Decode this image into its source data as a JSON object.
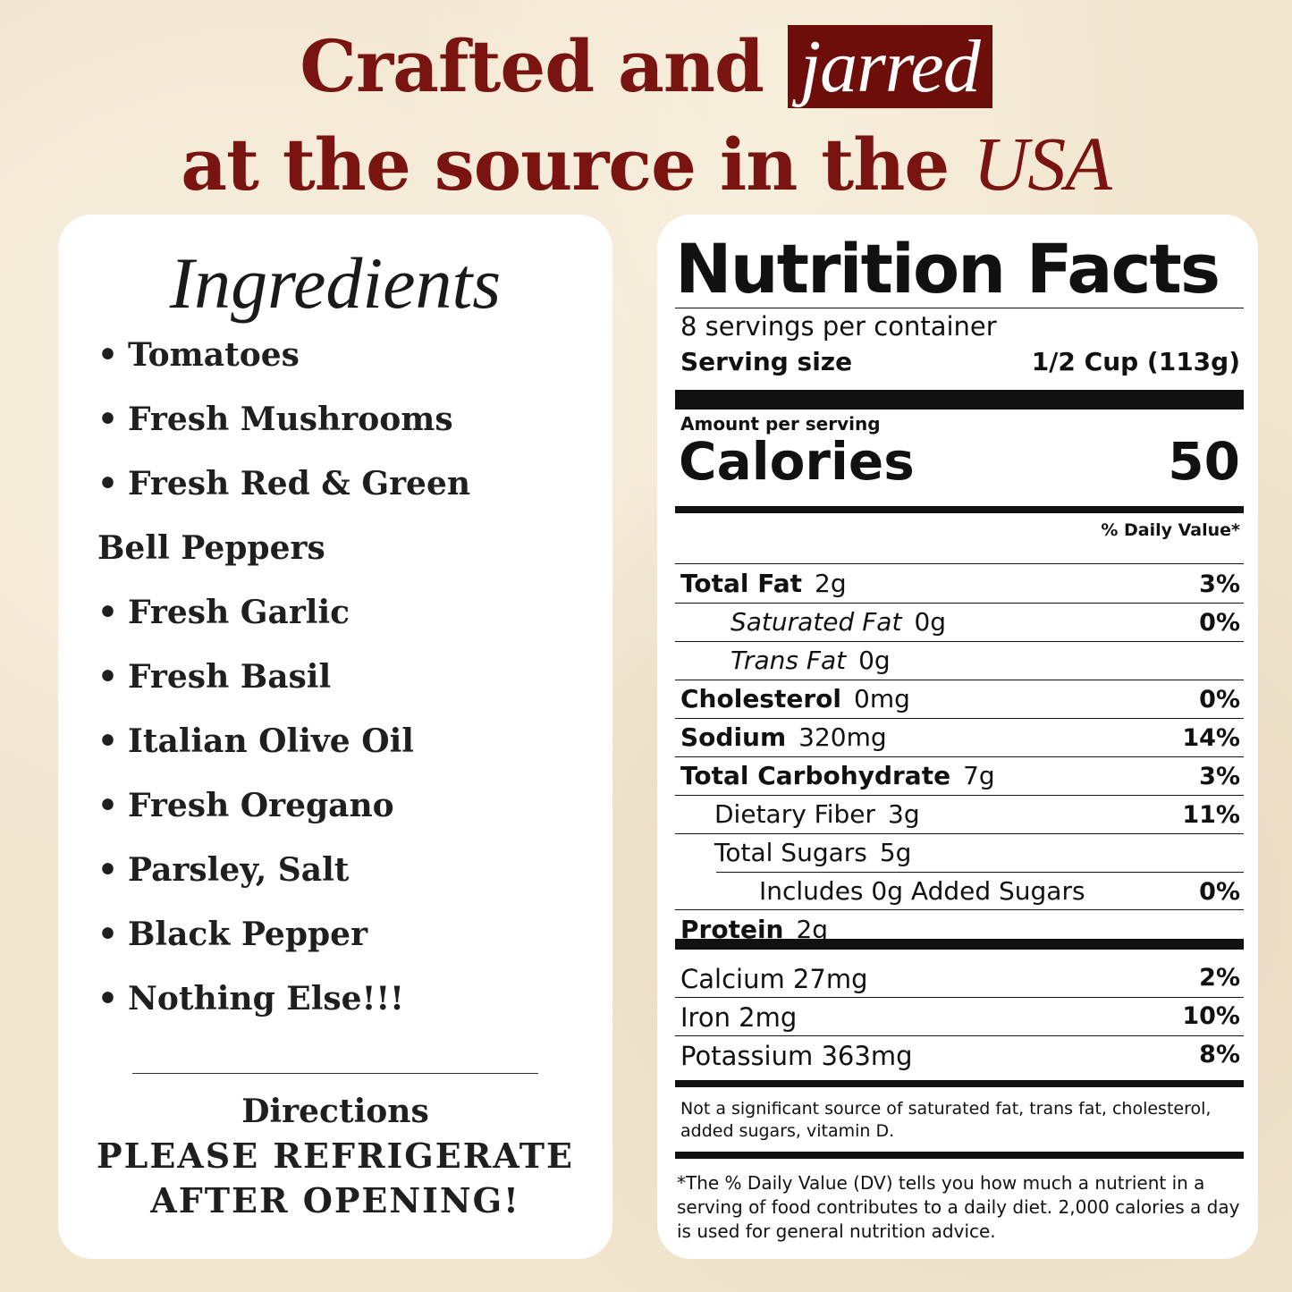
{
  "headline": {
    "line1_pre": "Crafted and",
    "line1_highlight": "jarred",
    "line2_pre": "at the source in the",
    "line2_italic": "USA"
  },
  "ingredients": {
    "title": "Ingredients",
    "items": [
      {
        "text": "Tomatoes",
        "bullet": "•"
      },
      {
        "text": "Fresh Mushrooms",
        "bullet": "•"
      },
      {
        "text": "Fresh Red & Green",
        "bullet": "•"
      },
      {
        "text": "Bell Peppers",
        "bullet": ""
      },
      {
        "text": "Fresh Garlic",
        "bullet": "•"
      },
      {
        "text": "Fresh Basil",
        "bullet": "•"
      },
      {
        "text": "Italian Olive Oil",
        "bullet": "•"
      },
      {
        "text": "Fresh Oregano",
        "bullet": "•"
      },
      {
        "text": "Parsley, Salt",
        "bullet": "•"
      },
      {
        "text": "Black Pepper",
        "bullet": "•"
      },
      {
        "text": "Nothing Else!!!",
        "bullet": "•"
      }
    ],
    "directions_title": "Directions",
    "directions_line1": "PLEASE REFRIGERATE",
    "directions_line2": "AFTER OPENING!"
  },
  "nutrition": {
    "title": "Nutrition Facts",
    "servings": "8 servings per container",
    "serving_size_label": "Serving size",
    "serving_size_value": "1/2 Cup (113g)",
    "amount_per_serving": "Amount per serving",
    "calories_label": "Calories",
    "calories_value": "50",
    "dv_header": "% Daily Value*",
    "rows": [
      {
        "label": "Total Fat",
        "amount": "2g",
        "dv": "3%"
      },
      {
        "label": "Saturated Fat",
        "amount": "0g",
        "dv": "0%"
      },
      {
        "label": "Trans Fat",
        "amount": "0g",
        "dv": ""
      },
      {
        "label": "Cholesterol",
        "amount": "0mg",
        "dv": "0%"
      },
      {
        "label": "Sodium",
        "amount": "320mg",
        "dv": "14%"
      },
      {
        "label": "Total Carbohydrate",
        "amount": "7g",
        "dv": "3%"
      },
      {
        "label": "Dietary Fiber",
        "amount": "3g",
        "dv": "11%"
      },
      {
        "label": "Total Sugars",
        "amount": "5g",
        "dv": ""
      },
      {
        "label": "Includes 0g Added Sugars",
        "amount": "",
        "dv": "0%"
      },
      {
        "label": "Protein",
        "amount": "2g",
        "dv": ""
      }
    ],
    "minerals": [
      {
        "label": "Calcium 27mg",
        "dv": "2%"
      },
      {
        "label": "Iron 2mg",
        "dv": "10%"
      },
      {
        "label": "Potassium 363mg",
        "dv": "8%"
      }
    ],
    "note": "Not a significant source of saturated fat, trans fat, cholesterol, added sugars, vitamin D.",
    "footnote": "*The % Daily Value (DV) tells you how much a nutrient in a serving of food contributes to a daily diet. 2,000 calories a day is used for general nutrition advice."
  }
}
